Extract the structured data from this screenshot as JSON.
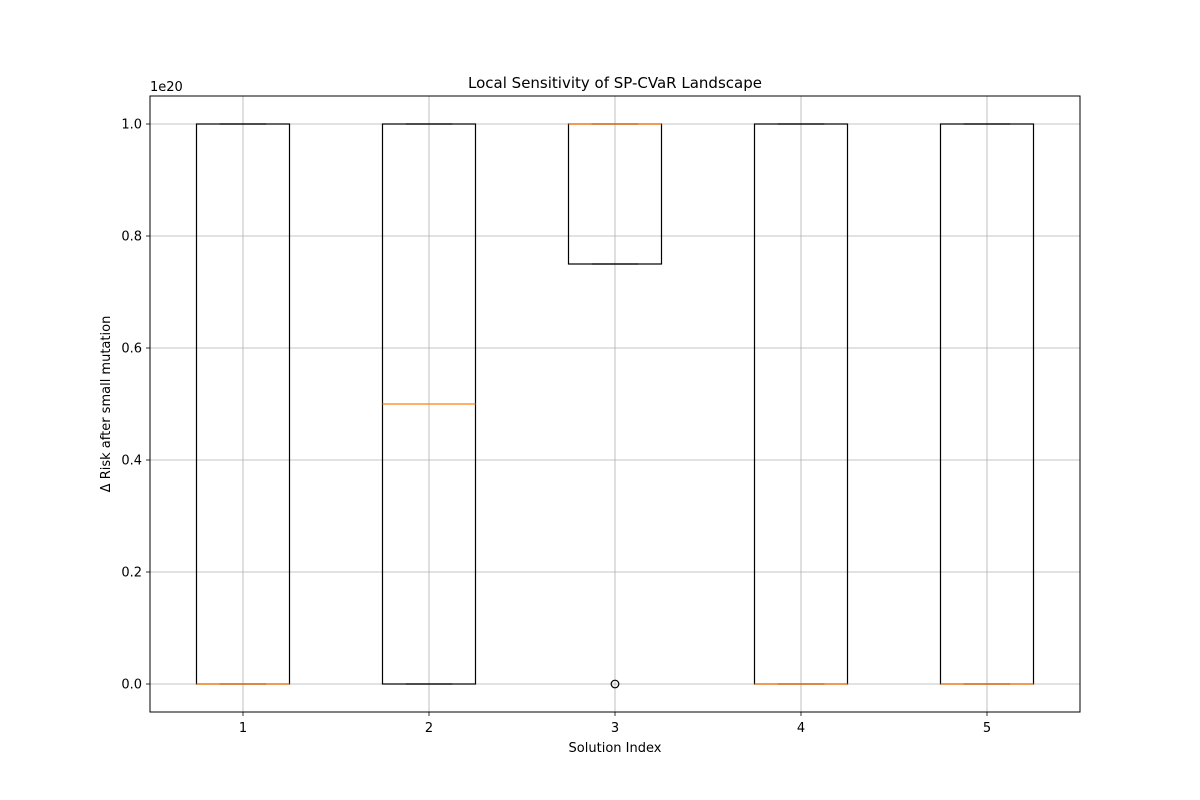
{
  "chart_data": {
    "type": "boxplot",
    "title": "Local Sensitivity of SP-CVaR Landscape",
    "xlabel": "Solution Index",
    "ylabel": "Δ Risk after small mutation",
    "y_offset_label": "1e20",
    "y_scale_factor": 1e+20,
    "categories": [
      "1",
      "2",
      "3",
      "4",
      "5"
    ],
    "yticks": [
      0.0,
      0.2,
      0.4,
      0.6,
      0.8,
      1.0
    ],
    "ytick_labels": [
      "0.0",
      "0.2",
      "0.4",
      "0.6",
      "0.8",
      "1.0"
    ],
    "ylim": [
      -0.05,
      1.05
    ],
    "grid": true,
    "boxes": [
      {
        "category": "1",
        "whisker_low": 0.0,
        "q1": 0.0,
        "median": 0.0,
        "q3": 1.0,
        "whisker_high": 1.0,
        "outliers": []
      },
      {
        "category": "2",
        "whisker_low": 0.0,
        "q1": 0.0,
        "median": 0.5,
        "q3": 1.0,
        "whisker_high": 1.0,
        "outliers": []
      },
      {
        "category": "3",
        "whisker_low": 0.75,
        "q1": 0.75,
        "median": 1.0,
        "q3": 1.0,
        "whisker_high": 1.0,
        "outliers": [
          0.0
        ]
      },
      {
        "category": "4",
        "whisker_low": 0.0,
        "q1": 0.0,
        "median": 0.0,
        "q3": 1.0,
        "whisker_high": 1.0,
        "outliers": []
      },
      {
        "category": "5",
        "whisker_low": 0.0,
        "q1": 0.0,
        "median": 0.0,
        "q3": 1.0,
        "whisker_high": 1.0,
        "outliers": []
      }
    ],
    "colors": {
      "box": "#000000",
      "median": "#ff7f0e",
      "grid": "#b0b0b0",
      "outlier": "#000000"
    }
  }
}
